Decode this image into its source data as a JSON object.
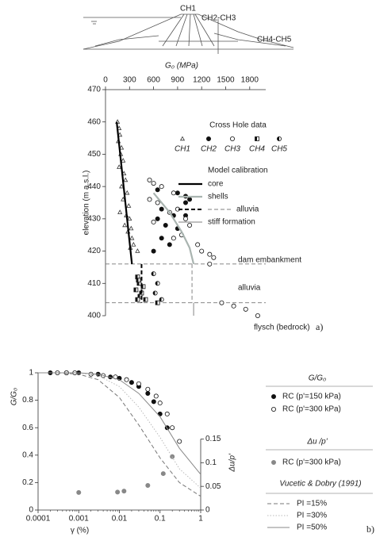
{
  "diagram": {
    "labels": [
      "CH1",
      "CH2-CH3",
      "CH4-CH5"
    ]
  },
  "chart_data": [
    {
      "type": "scatter",
      "panel_label": "a)",
      "x_label": "G₀ (MPa)",
      "y_label": "elevation  (m a.s.l.)",
      "xlim": [
        0,
        2000
      ],
      "xticks": [
        0,
        300,
        600,
        900,
        1200,
        1500,
        1800
      ],
      "ylim": [
        400,
        470
      ],
      "yticks": [
        400,
        410,
        420,
        430,
        440,
        450,
        460,
        470
      ],
      "hlines": [
        416,
        404
      ],
      "annotations": [
        "dam embankment",
        "alluvia",
        "flysch  (bedrock)"
      ],
      "legend_titles": [
        "Cross Hole data",
        "Model calibration"
      ],
      "series": [
        {
          "name": "CH1",
          "marker": "triangle",
          "color": "#333333",
          "x": [
            150,
            170,
            180,
            160,
            200,
            190,
            220,
            170,
            230,
            250,
            200,
            270,
            220,
            290,
            180,
            260,
            300,
            240,
            320,
            280,
            330,
            350,
            310,
            400
          ],
          "values": [
            460,
            458,
            456,
            454,
            452,
            450,
            448,
            446,
            444,
            442,
            440,
            438,
            436,
            434,
            432,
            431,
            430,
            428,
            427,
            426,
            424,
            422,
            421,
            420
          ]
        },
        {
          "name": "CH2",
          "marker": "circle-filled",
          "color": "#111111",
          "x": [
            650,
            900,
            1000,
            1050,
            1000,
            700,
            850,
            650,
            750,
            900,
            700,
            800,
            600,
            1000
          ],
          "values": [
            439,
            438,
            437,
            436,
            435,
            433,
            431,
            430,
            428,
            427,
            424,
            422,
            420,
            431
          ]
        },
        {
          "name": "CH3",
          "marker": "circle-open",
          "color": "#111111",
          "x": [
            550,
            600,
            700,
            850,
            550,
            650,
            900,
            800,
            1000,
            600,
            1050,
            950,
            850,
            1150,
            1200,
            1300,
            1350,
            1300,
            1450,
            1600,
            1750,
            1900
          ],
          "values": [
            442,
            441,
            440,
            438,
            436,
            435,
            433,
            432,
            430,
            429,
            428,
            425,
            424,
            422,
            420,
            419,
            418,
            416,
            404,
            403,
            402,
            400
          ]
        },
        {
          "name": "CH4",
          "marker": "square-half",
          "color": "#111111",
          "x": [
            400,
            420,
            380,
            450,
            430,
            400,
            650,
            500,
            470,
            410
          ],
          "values": [
            412,
            410,
            408,
            407,
            406,
            405,
            404,
            405,
            409,
            411
          ]
        },
        {
          "name": "CH5",
          "marker": "circle-half",
          "color": "#111111",
          "x": [
            600,
            650,
            620,
            700
          ],
          "values": [
            413,
            410,
            407,
            405
          ]
        },
        {
          "name": "core",
          "line": "solid",
          "width": 2.2,
          "color": "#000000",
          "x": [
            140,
            330
          ],
          "values": [
            460,
            416
          ]
        },
        {
          "name": "shells",
          "line": "solid",
          "width": 2.2,
          "color": "#a9b4b0",
          "x": [
            600,
            800,
            950,
            1050,
            1100
          ],
          "values": [
            438,
            432,
            426,
            421,
            416
          ]
        },
        {
          "name": "alluvia",
          "line": "dashed",
          "width": 2,
          "color": "#000000",
          "x": [
            450,
            450
          ],
          "values": [
            416,
            404
          ]
        },
        {
          "line": "dashed",
          "width": 1.2,
          "color": "#999999",
          "x": [
            1080,
            1080
          ],
          "values": [
            416,
            404
          ]
        },
        {
          "name": "stiff formation",
          "line": "solid",
          "width": 1.2,
          "color": "#999999",
          "x": [
            1100,
            1100
          ],
          "values": [
            404,
            400
          ]
        }
      ]
    },
    {
      "type": "scatter",
      "panel_label": "b)",
      "x_label": "γ (%)",
      "y_label": "G/G₀",
      "y2_label": "Δu/p'",
      "xlog": true,
      "xlim": [
        0.0001,
        1
      ],
      "xticks": [
        0.0001,
        0.001,
        0.01,
        0.1,
        1
      ],
      "ylim": [
        0,
        1
      ],
      "yticks": [
        0,
        0.2,
        0.4,
        0.6,
        0.8,
        1
      ],
      "y2lim": [
        0,
        0.29
      ],
      "y2ticks": [
        0,
        0.05,
        0.1,
        0.15
      ],
      "legend_titles": [
        "G/G₀",
        "Δu /p'",
        "Vucetic & Dobry (1991)"
      ],
      "series": [
        {
          "name": "RC (p'=150 kPa)",
          "marker": "circle-filled",
          "color": "#111111",
          "x": [
            0.0002,
            0.0005,
            0.001,
            0.003,
            0.006,
            0.01,
            0.02,
            0.03,
            0.05,
            0.07,
            0.1,
            0.15
          ],
          "values": [
            1,
            1,
            1,
            0.99,
            0.97,
            0.96,
            0.93,
            0.9,
            0.85,
            0.79,
            0.7,
            0.6
          ]
        },
        {
          "name": "RC (p'=300 kPa)",
          "marker": "circle-open",
          "color": "#111111",
          "x": [
            0.0003,
            0.0005,
            0.0008,
            0.002,
            0.004,
            0.008,
            0.015,
            0.03,
            0.05,
            0.08,
            0.1,
            0.15,
            0.2,
            0.3
          ],
          "values": [
            1,
            1,
            1,
            0.99,
            0.98,
            0.97,
            0.95,
            0.92,
            0.88,
            0.83,
            0.78,
            0.7,
            0.6,
            0.5
          ]
        },
        {
          "name": "RC (p'=300 kPa)",
          "marker": "circle-filled",
          "color": "#888888",
          "axis": "y2",
          "x": [
            0.001,
            0.009,
            0.013,
            0.05,
            0.12,
            0.2
          ],
          "values": [
            0.037,
            0.038,
            0.04,
            0.052,
            0.077,
            0.113
          ]
        },
        {
          "name": "PI =15%",
          "line": "dashed",
          "width": 1,
          "color": "#777777",
          "x": [
            0.0001,
            0.0003,
            0.001,
            0.003,
            0.01,
            0.03,
            0.1,
            0.3,
            1
          ],
          "values": [
            1,
            1,
            0.99,
            0.95,
            0.82,
            0.62,
            0.38,
            0.2,
            0.1
          ]
        },
        {
          "name": "PI =30%",
          "line": "dotted",
          "width": 1,
          "color": "#bbbbbb",
          "x": [
            0.0001,
            0.0003,
            0.001,
            0.003,
            0.01,
            0.03,
            0.1,
            0.3,
            1
          ],
          "values": [
            1,
            1,
            1,
            0.98,
            0.9,
            0.75,
            0.53,
            0.3,
            0.16
          ]
        },
        {
          "name": "PI =50%",
          "line": "solid",
          "width": 1,
          "color": "#888888",
          "x": [
            0.0001,
            0.0003,
            0.001,
            0.003,
            0.01,
            0.03,
            0.1,
            0.3,
            1
          ],
          "values": [
            1,
            1,
            1,
            0.99,
            0.95,
            0.85,
            0.68,
            0.45,
            0.26
          ]
        }
      ]
    }
  ]
}
